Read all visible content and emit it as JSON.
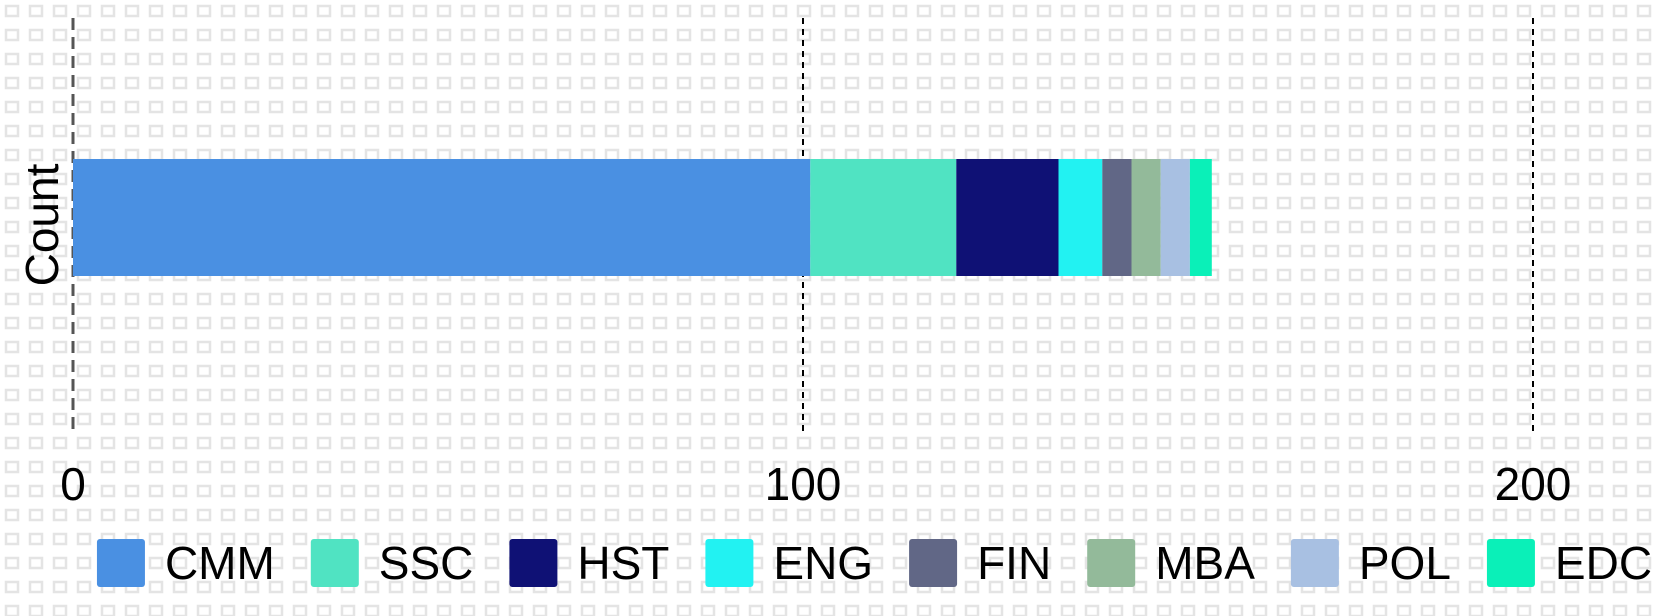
{
  "chart_data": {
    "type": "bar",
    "orientation": "horizontal",
    "stacked": true,
    "category": "Count",
    "ylabel": "Count",
    "xlabel": "",
    "xlim": [
      0,
      200
    ],
    "xticks": [
      0,
      100,
      200
    ],
    "xtick_labels": [
      "0",
      "100",
      "200"
    ],
    "grid": "dashed vertical lines at ticks",
    "legend_position": "bottom",
    "background": "patterned",
    "series": [
      {
        "name": "CMM",
        "value": 101,
        "color": "#4A90E2"
      },
      {
        "name": "SSC",
        "value": 20,
        "color": "#50E3C2"
      },
      {
        "name": "HST",
        "value": 14,
        "color": "#0F1175"
      },
      {
        "name": "ENG",
        "value": 6,
        "color": "#22F2F2"
      },
      {
        "name": "FIN",
        "value": 4,
        "color": "#616786"
      },
      {
        "name": "MBA",
        "value": 4,
        "color": "#93BA9A"
      },
      {
        "name": "POL",
        "value": 4,
        "color": "#A8C0E2"
      },
      {
        "name": "EDC",
        "value": 3,
        "color": "#0AF0B8"
      }
    ]
  }
}
